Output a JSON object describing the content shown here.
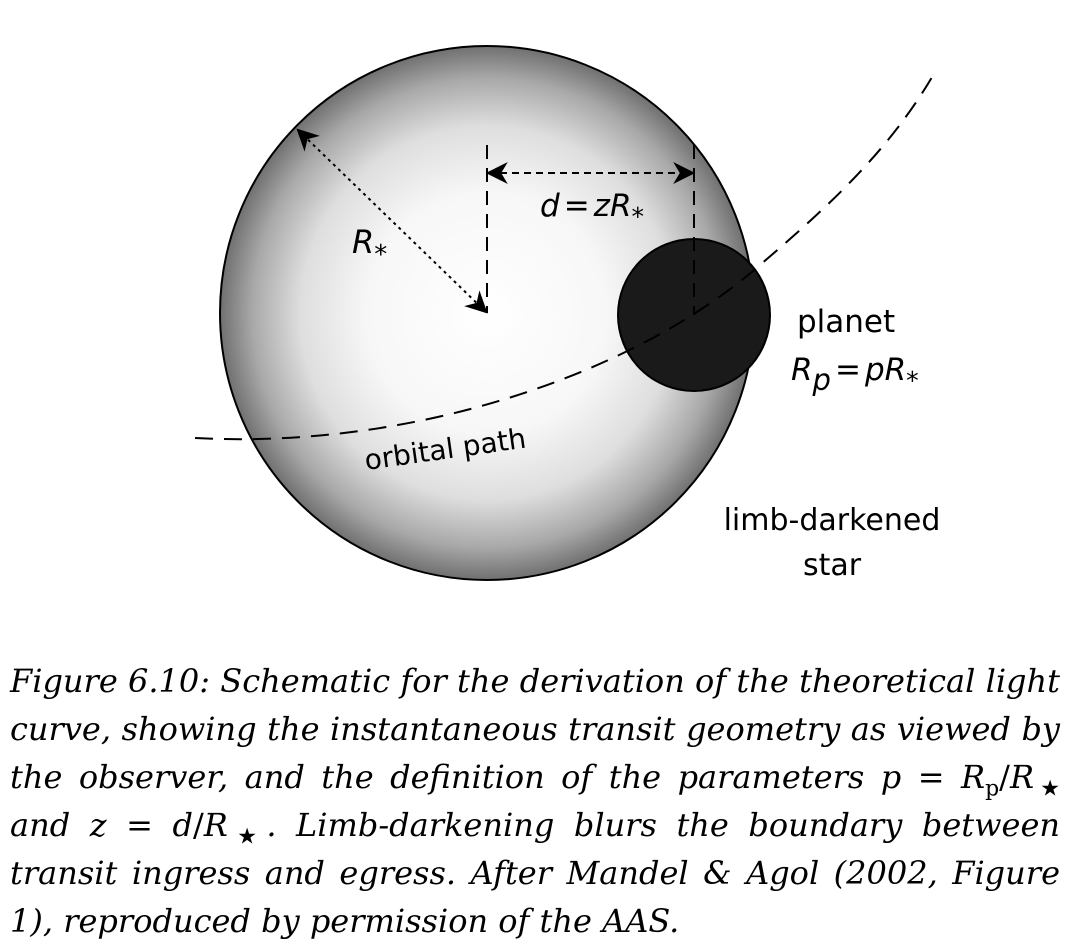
{
  "diagram": {
    "radius_label": {
      "base": "R",
      "sub": "*"
    },
    "distance_label": {
      "lhs": "d",
      "eq": "=",
      "rhs": "zR",
      "sub": "*"
    },
    "planet_label": "planet",
    "planet_radius_label": {
      "base": "R",
      "base_sub": "p",
      "eq": "=",
      "rhs": "pR",
      "rhs_sub": "*"
    },
    "orbit_label": "orbital path",
    "star_label_line1": "limb-darkened",
    "star_label_line2": "star"
  },
  "caption": {
    "prefix": "Figure 6.10: Schematic for the derivation of the theoretical light curve, showing the instantaneous transit geometry as viewed by the observer, and the definition of the parameters",
    "p_symbol": "p",
    "p_eq": "=",
    "p_R": "R",
    "p_sub": "p",
    "p_slash": "/",
    "p_Rstar": "R",
    "star_sym": "★",
    "and_text": "and",
    "z_symbol": "z",
    "z_eq": "=",
    "z_d": "d",
    "z_slash": "/",
    "z_R": "R",
    "z_end": ".",
    "suffix": "Limb-darkening blurs the boundary between transit ingress and egress. After Mandel & Agol (2002, Figure 1), reproduced by permission of the AAS."
  }
}
